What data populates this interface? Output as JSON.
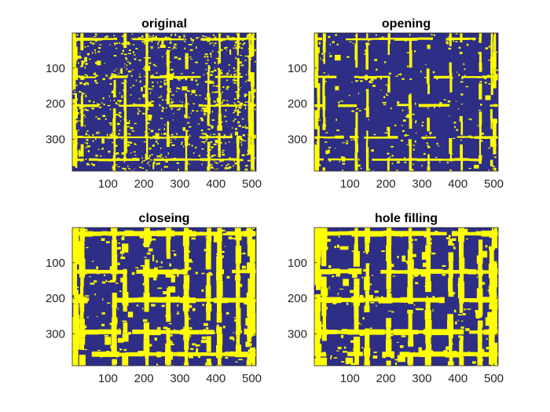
{
  "colors": {
    "background": "#2e2e87",
    "foreground": "#ffff00"
  },
  "chart_data": [
    {
      "type": "heatmap",
      "title": "original",
      "xlim": [
        1,
        512
      ],
      "ylim": [
        1,
        390
      ],
      "xticks": [
        100,
        200,
        300,
        400,
        500
      ],
      "yticks": [
        100,
        200,
        300
      ],
      "colormap": [
        "#2e2e87",
        "#ffff00"
      ]
    },
    {
      "type": "heatmap",
      "title": "opening",
      "xlim": [
        1,
        512
      ],
      "ylim": [
        1,
        390
      ],
      "xticks": [
        100,
        200,
        300,
        400,
        500
      ],
      "yticks": [
        100,
        200,
        300
      ],
      "colormap": [
        "#2e2e87",
        "#ffff00"
      ]
    },
    {
      "type": "heatmap",
      "title": "closeing",
      "xlim": [
        1,
        512
      ],
      "ylim": [
        1,
        390
      ],
      "xticks": [
        100,
        200,
        300,
        400,
        500
      ],
      "yticks": [
        100,
        200,
        300
      ],
      "colormap": [
        "#2e2e87",
        "#ffff00"
      ]
    },
    {
      "type": "heatmap",
      "title": "hole filling",
      "xlim": [
        1,
        512
      ],
      "ylim": [
        1,
        390
      ],
      "xticks": [
        100,
        200,
        300,
        400,
        500
      ],
      "yticks": [
        100,
        200,
        300
      ],
      "colormap": [
        "#2e2e87",
        "#ffff00"
      ]
    }
  ]
}
